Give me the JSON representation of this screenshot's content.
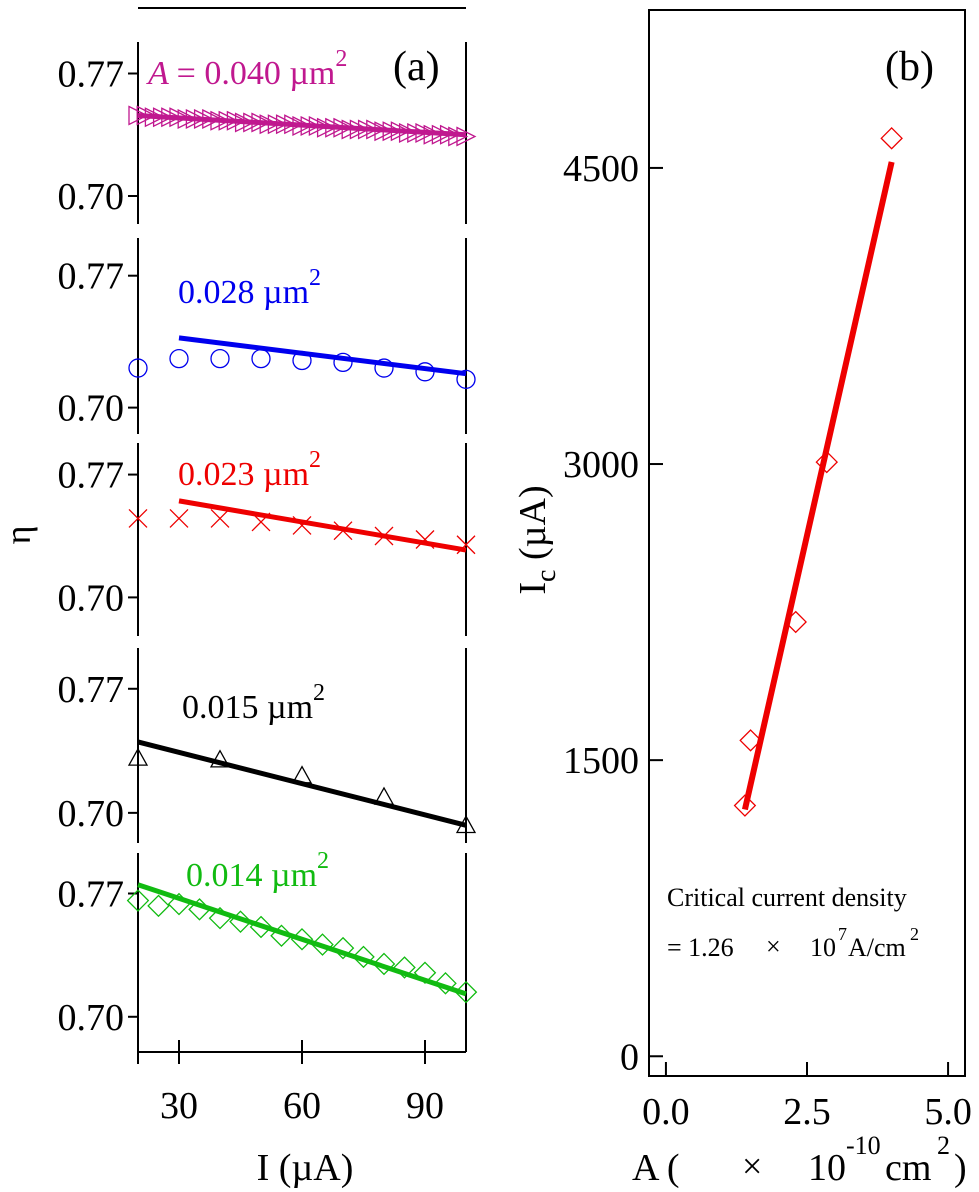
{
  "colors": {
    "magenta": "#c0188f",
    "blue": "#0000ee",
    "red": "#ee0000",
    "black": "#000000",
    "green": "#11bb11"
  },
  "panel_a": {
    "tag": "(a)",
    "xlabel": "I (µA)",
    "ylabel": "η",
    "x_ticks": [
      "30",
      "60",
      "90"
    ],
    "y_ticks": [
      "0.77",
      "0.70"
    ]
  },
  "panel_b": {
    "tag": "(b)",
    "ylabel_main": "I",
    "ylabel_sub": "c",
    "ylabel_rest": " (µA)",
    "xlabel_a": "A (",
    "xlabel_times": "×",
    "xlabel_ten": "10",
    "xlabel_exp": "-10",
    "xlabel_unit": "cm",
    "xlabel_unit_exp": "2",
    "xlabel_close": ")",
    "x_ticks": [
      "0.0",
      "2.5",
      "5.0"
    ],
    "y_ticks": [
      "0",
      "1500",
      "3000",
      "4500"
    ],
    "annotation_line1": "Critical current density",
    "annotation_eq": "= 1.26",
    "annotation_times": "×",
    "annotation_ten": "10",
    "annotation_exp": "7",
    "annotation_unit": "A/cm",
    "annotation_unit_exp": "2"
  },
  "chart_data": [
    {
      "type": "scatter",
      "panel": "(a)",
      "xlabel": "I (µA)",
      "ylabel": "η",
      "xlim": [
        20,
        100
      ],
      "x_ticks": [
        30,
        60,
        90
      ],
      "y_ticks": [
        0.7,
        0.77
      ],
      "series": [
        {
          "name": "A = 0.040 µm2",
          "label_prefix": "A",
          "label_value": "= 0.040 µm",
          "label_exp": "2",
          "color": "#c0188f",
          "marker": "triangle-right",
          "ylim": [
            0.684,
            0.788
          ],
          "x": [
            20,
            22,
            24,
            26,
            28,
            30,
            32,
            34,
            36,
            38,
            40,
            42,
            44,
            46,
            48,
            50,
            52,
            54,
            56,
            58,
            60,
            62,
            64,
            66,
            68,
            70,
            72,
            74,
            76,
            78,
            80,
            82,
            84,
            86,
            88,
            90,
            92,
            94,
            96,
            98,
            100
          ],
          "y": [
            0.746,
            0.746,
            0.745,
            0.745,
            0.745,
            0.745,
            0.744,
            0.744,
            0.744,
            0.744,
            0.743,
            0.743,
            0.743,
            0.742,
            0.742,
            0.742,
            0.741,
            0.741,
            0.741,
            0.741,
            0.74,
            0.74,
            0.74,
            0.739,
            0.739,
            0.739,
            0.738,
            0.738,
            0.738,
            0.738,
            0.737,
            0.737,
            0.737,
            0.736,
            0.736,
            0.736,
            0.735,
            0.735,
            0.735,
            0.734,
            0.734
          ],
          "fit_x": [
            20,
            100
          ],
          "fit_y": [
            0.746,
            0.735
          ]
        },
        {
          "name": "0.028 µm2",
          "label_value": "0.028 µm",
          "label_exp": "2",
          "color": "#0000ee",
          "marker": "circle",
          "ylim": [
            0.686,
            0.79
          ],
          "x": [
            20,
            30,
            40,
            50,
            60,
            70,
            80,
            90,
            100
          ],
          "y": [
            0.721,
            0.726,
            0.726,
            0.726,
            0.725,
            0.724,
            0.721,
            0.719,
            0.715
          ],
          "fit_x": [
            30,
            100
          ],
          "fit_y": [
            0.737,
            0.718
          ]
        },
        {
          "name": "0.023 µm2",
          "label_value": "0.023 µm",
          "label_exp": "2",
          "color": "#ee0000",
          "marker": "x",
          "ylim": [
            0.678,
            0.788
          ],
          "x": [
            20,
            30,
            40,
            50,
            60,
            70,
            80,
            90,
            100
          ],
          "y": [
            0.745,
            0.745,
            0.745,
            0.743,
            0.741,
            0.738,
            0.735,
            0.733,
            0.73
          ],
          "fit_x": [
            30,
            100
          ],
          "fit_y": [
            0.755,
            0.727
          ]
        },
        {
          "name": "0.015 µm2",
          "label_value": "0.015 µm",
          "label_exp": "2",
          "color": "#000000",
          "marker": "triangle",
          "ylim": [
            0.683,
            0.793
          ],
          "x": [
            20,
            40,
            60,
            80,
            100
          ],
          "y": [
            0.731,
            0.73,
            0.721,
            0.709,
            0.693
          ],
          "fit_x": [
            20,
            100
          ],
          "fit_y": [
            0.74,
            0.693
          ]
        },
        {
          "name": "0.014 µm2",
          "label_value": "0.014 µm",
          "label_exp": "2",
          "color": "#11bb11",
          "marker": "diamond",
          "ylim": [
            0.68,
            0.793
          ],
          "x": [
            20,
            25,
            30,
            35,
            40,
            45,
            50,
            55,
            60,
            65,
            70,
            75,
            80,
            85,
            90,
            95,
            100
          ],
          "y": [
            0.766,
            0.763,
            0.764,
            0.761,
            0.756,
            0.754,
            0.751,
            0.746,
            0.744,
            0.741,
            0.739,
            0.734,
            0.73,
            0.728,
            0.725,
            0.719,
            0.714
          ],
          "fit_x": [
            20,
            100
          ],
          "fit_y": [
            0.775,
            0.713
          ]
        }
      ]
    },
    {
      "type": "scatter",
      "panel": "(b)",
      "xlabel": "A ( × 10-10 cm2)",
      "ylabel": "Ic (µA)",
      "xlim": [
        -0.3,
        5.3
      ],
      "ylim": [
        -100,
        5300
      ],
      "x_ticks": [
        0.0,
        2.5,
        5.0
      ],
      "y_ticks": [
        0,
        1500,
        3000,
        4500
      ],
      "series": [
        {
          "color": "#ee0000",
          "marker": "diamond",
          "x": [
            1.4,
            1.5,
            2.3,
            2.85,
            4.0
          ],
          "y": [
            1270,
            1600,
            2200,
            3010,
            4650
          ],
          "fit_x": [
            1.4,
            4.0
          ],
          "fit_y": [
            1250,
            4530
          ]
        }
      ],
      "annotation": "Critical current density = 1.26 × 10^7 A/cm^2"
    }
  ]
}
